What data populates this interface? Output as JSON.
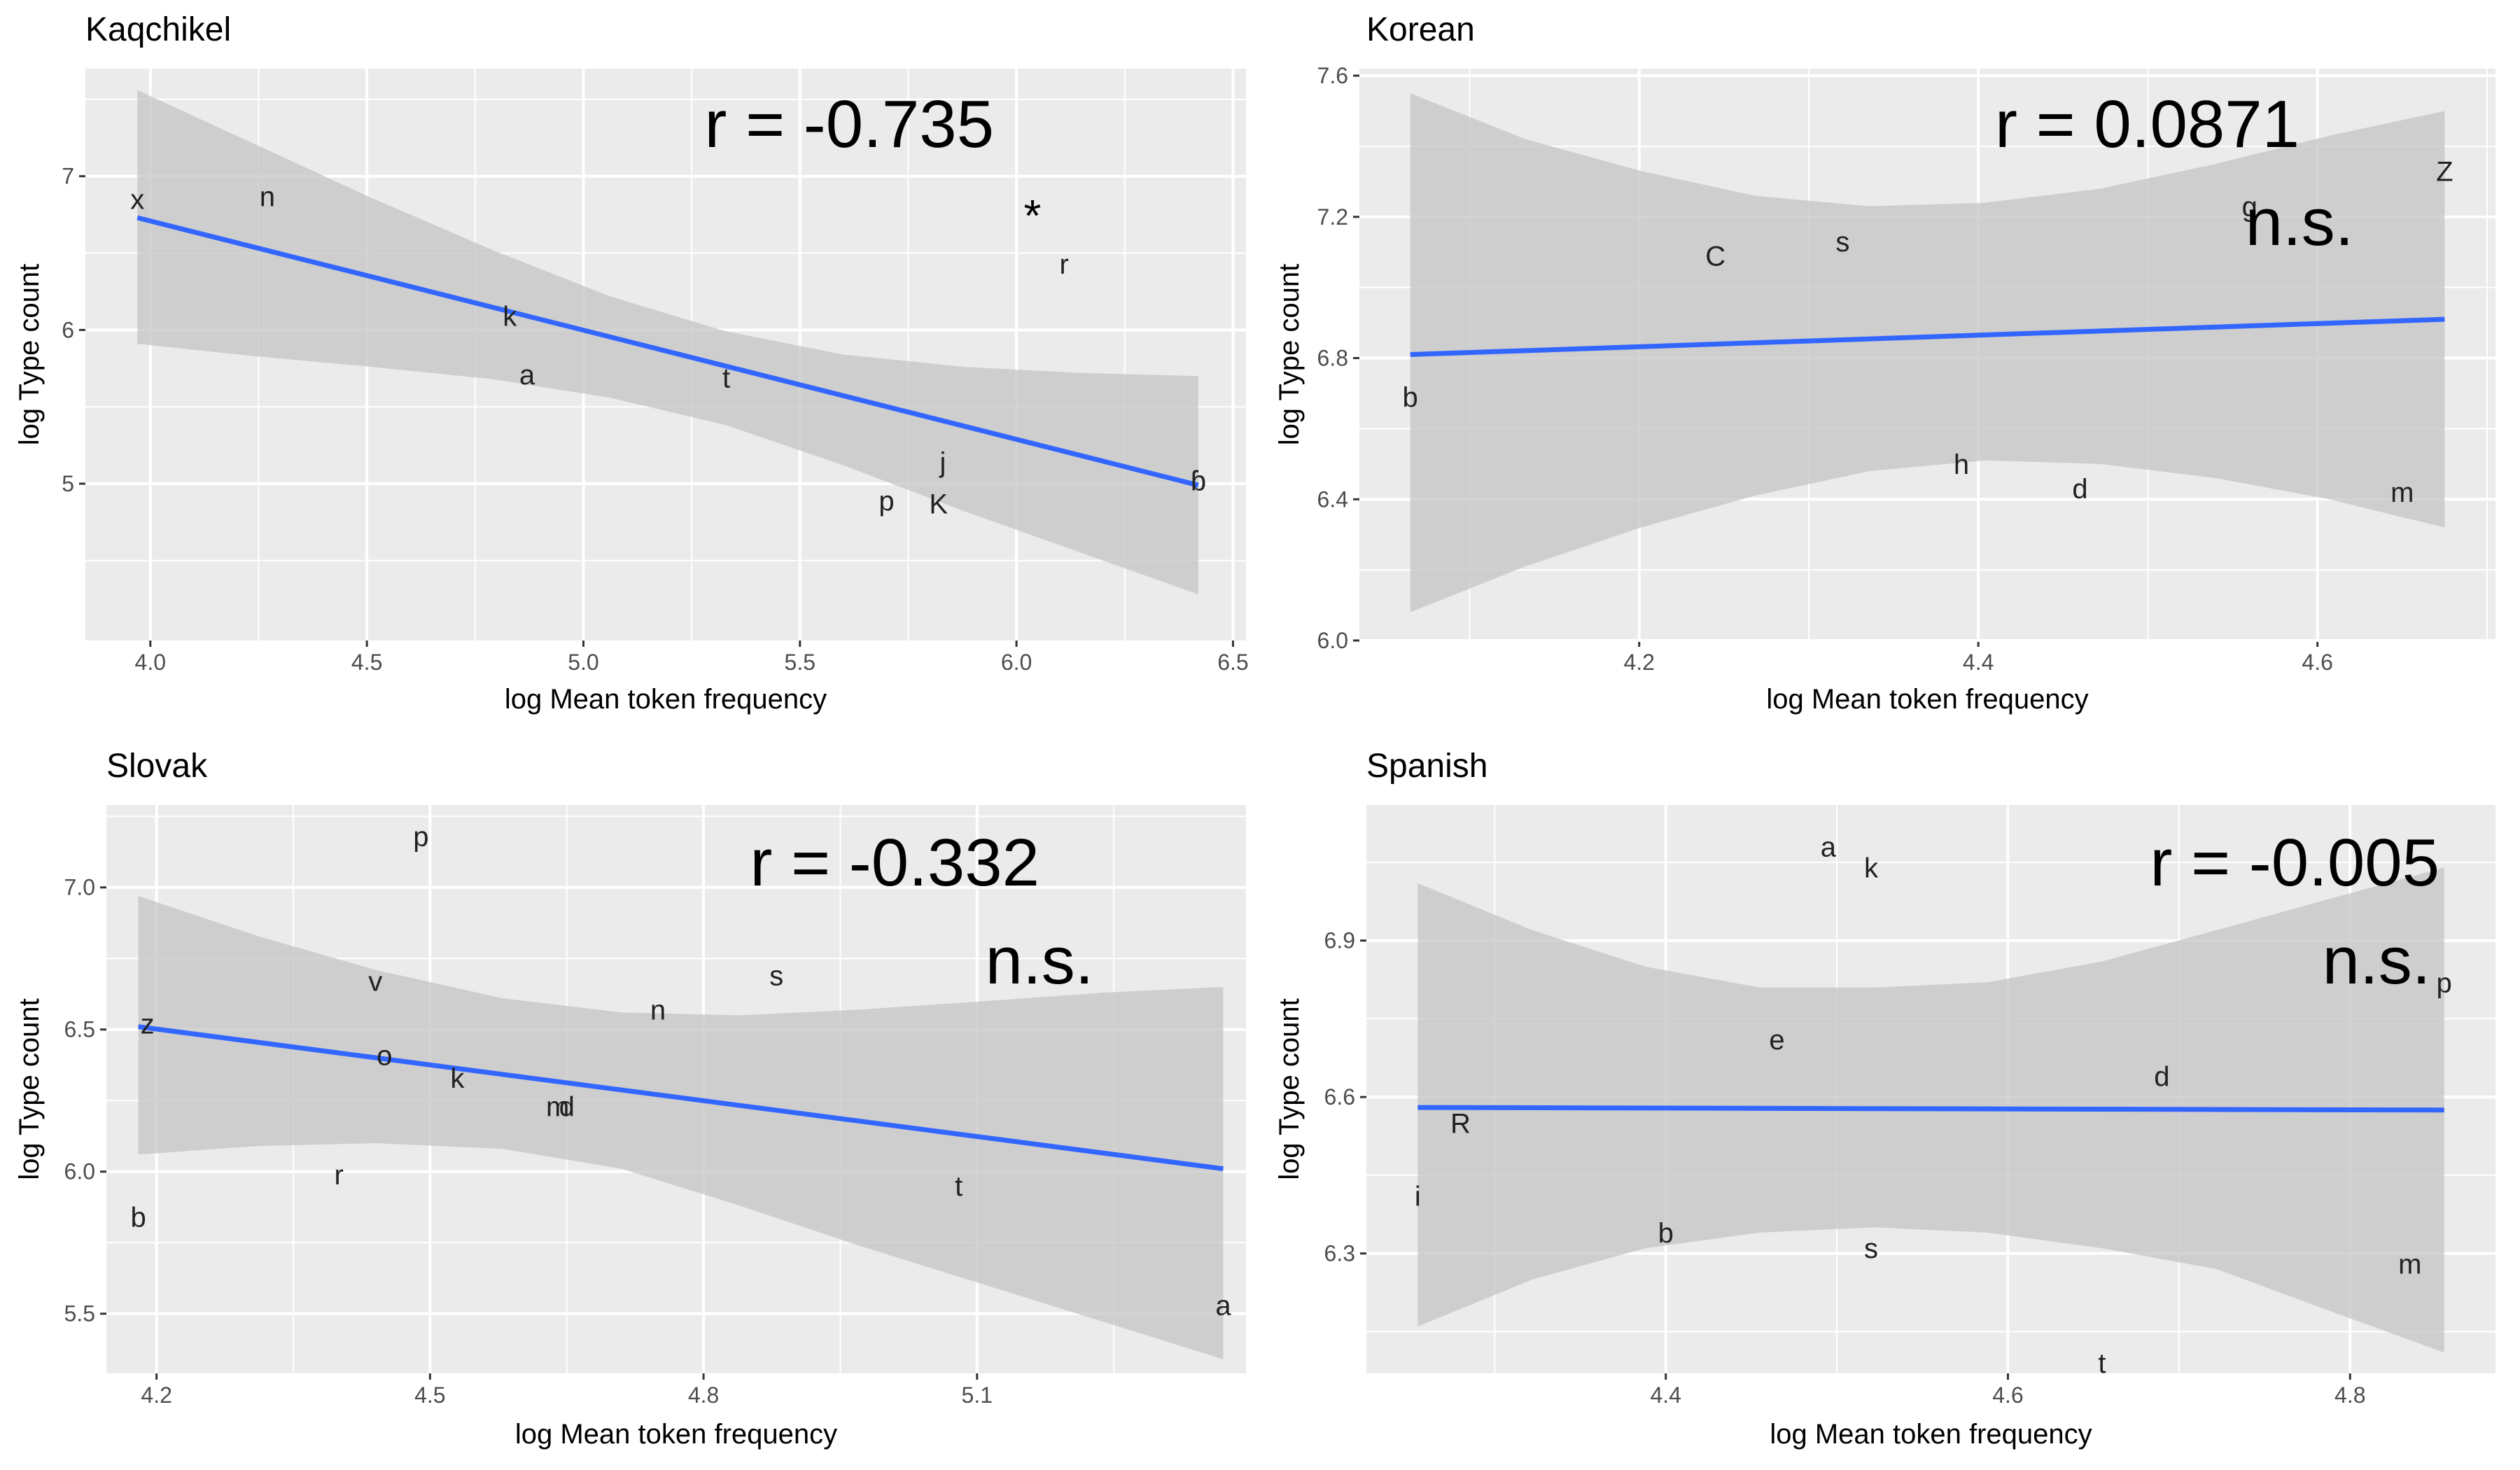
{
  "chart_data": [
    {
      "type": "scatter",
      "title": "Kaqchikel",
      "xlabel": "log Mean token frequency",
      "ylabel": "log Type count",
      "xlim": [
        3.85,
        6.53
      ],
      "ylim": [
        3.98,
        7.7
      ],
      "xticks": [
        4.0,
        4.5,
        5.0,
        5.5,
        6.0,
        6.5
      ],
      "xtick_labels": [
        "4.0",
        "4.5",
        "5.0",
        "5.5",
        "6.0",
        "6.5"
      ],
      "yticks": [
        5,
        6,
        7
      ],
      "ytick_labels": [
        "5",
        "6",
        "7"
      ],
      "grid": true,
      "annotation": "r = -0.735",
      "significance": "*",
      "points": [
        {
          "label": "x",
          "x": 3.97,
          "y": 6.85
        },
        {
          "label": "n",
          "x": 4.27,
          "y": 6.87
        },
        {
          "label": "k",
          "x": 4.83,
          "y": 6.09
        },
        {
          "label": "a",
          "x": 4.87,
          "y": 5.71
        },
        {
          "label": "t",
          "x": 5.33,
          "y": 5.69
        },
        {
          "label": "r",
          "x": 6.11,
          "y": 6.43
        },
        {
          "label": "j",
          "x": 5.83,
          "y": 5.14
        },
        {
          "label": "p",
          "x": 5.7,
          "y": 4.89
        },
        {
          "label": "K",
          "x": 5.82,
          "y": 4.87
        },
        {
          "label": "ɓ",
          "x": 6.42,
          "y": 5.02
        }
      ],
      "fit": {
        "x": [
          3.97,
          6.42
        ],
        "y": [
          6.73,
          4.99
        ]
      },
      "ci_lower": [
        5.91,
        5.83,
        5.76,
        5.68,
        5.56,
        5.38,
        5.12,
        4.82,
        4.55,
        4.28
      ],
      "ci_upper": [
        7.56,
        7.21,
        6.86,
        6.52,
        6.22,
        5.99,
        5.84,
        5.76,
        5.72,
        5.7
      ],
      "ci_x": [
        3.97,
        4.24,
        4.51,
        4.79,
        5.06,
        5.33,
        5.6,
        5.88,
        6.15,
        6.42
      ],
      "colors": {
        "panel": "#ebebeb",
        "grid": "#ffffff",
        "line": "#3366ff",
        "ribbon": "#c4c4c4"
      }
    },
    {
      "type": "scatter",
      "title": "Korean",
      "xlabel": "log Mean token frequency",
      "ylabel": "log Type count",
      "xlim": [
        4.035,
        4.705
      ],
      "ylim": [
        6.0,
        7.62
      ],
      "xticks": [
        4.2,
        4.4,
        4.6
      ],
      "xtick_labels": [
        "4.2",
        "4.4",
        "4.6"
      ],
      "yticks": [
        6.0,
        6.4,
        6.8,
        7.2,
        7.6
      ],
      "ytick_labels": [
        "6.0",
        "6.4",
        "6.8",
        "7.2",
        "7.6"
      ],
      "grid": true,
      "annotation": "r = 0.0871",
      "significance": "n.s.",
      "points": [
        {
          "label": "Z",
          "x": 4.675,
          "y": 7.33
        },
        {
          "label": "g",
          "x": 4.56,
          "y": 7.23
        },
        {
          "label": "C",
          "x": 4.245,
          "y": 7.09
        },
        {
          "label": "s",
          "x": 4.32,
          "y": 7.13
        },
        {
          "label": "b",
          "x": 4.065,
          "y": 6.69
        },
        {
          "label": "h",
          "x": 4.39,
          "y": 6.5
        },
        {
          "label": "d",
          "x": 4.46,
          "y": 6.43
        },
        {
          "label": "m",
          "x": 4.65,
          "y": 6.42
        }
      ],
      "fit": {
        "x": [
          4.065,
          4.675
        ],
        "y": [
          6.81,
          6.91
        ]
      },
      "ci_x": [
        4.065,
        4.133,
        4.201,
        4.268,
        4.336,
        4.404,
        4.472,
        4.54,
        4.607,
        4.675
      ],
      "ci_lower": [
        6.08,
        6.21,
        6.32,
        6.41,
        6.48,
        6.51,
        6.5,
        6.46,
        6.4,
        6.32
      ],
      "ci_upper": [
        7.55,
        7.42,
        7.33,
        7.26,
        7.23,
        7.24,
        7.28,
        7.35,
        7.43,
        7.5
      ],
      "colors": {
        "panel": "#ebebeb",
        "grid": "#ffffff",
        "line": "#3366ff",
        "ribbon": "#c4c4c4"
      }
    },
    {
      "type": "scatter",
      "title": "Slovak",
      "xlabel": "log Mean token frequency",
      "ylabel": "log Type count",
      "xlim": [
        4.145,
        5.395
      ],
      "ylim": [
        5.29,
        7.29
      ],
      "xticks": [
        4.2,
        4.5,
        4.8,
        5.1
      ],
      "xtick_labels": [
        "4.2",
        "4.5",
        "4.8",
        "5.1"
      ],
      "yticks": [
        5.5,
        6.0,
        6.5,
        7.0
      ],
      "ytick_labels": [
        "5.5",
        "6.0",
        "6.5",
        "7.0"
      ],
      "grid": true,
      "annotation": "r = -0.332",
      "significance": "n.s.",
      "points": [
        {
          "label": "p",
          "x": 4.49,
          "y": 7.18
        },
        {
          "label": "v",
          "x": 4.44,
          "y": 6.67
        },
        {
          "label": "s",
          "x": 4.88,
          "y": 6.69
        },
        {
          "label": "n",
          "x": 4.75,
          "y": 6.57
        },
        {
          "label": "z",
          "x": 4.19,
          "y": 6.52
        },
        {
          "label": "o",
          "x": 4.45,
          "y": 6.41
        },
        {
          "label": "k",
          "x": 4.53,
          "y": 6.33
        },
        {
          "label": "m",
          "x": 4.64,
          "y": 6.23
        },
        {
          "label": "d",
          "x": 4.65,
          "y": 6.23
        },
        {
          "label": "r",
          "x": 4.4,
          "y": 5.99
        },
        {
          "label": "t",
          "x": 5.08,
          "y": 5.95
        },
        {
          "label": "b",
          "x": 4.18,
          "y": 5.84
        },
        {
          "label": "a",
          "x": 5.37,
          "y": 5.53
        }
      ],
      "fit": {
        "x": [
          4.18,
          5.37
        ],
        "y": [
          6.51,
          6.01
        ]
      },
      "ci_x": [
        4.18,
        4.31,
        4.44,
        4.58,
        4.71,
        4.84,
        4.97,
        5.11,
        5.24,
        5.37
      ],
      "ci_lower": [
        6.06,
        6.09,
        6.1,
        6.08,
        6.01,
        5.88,
        5.74,
        5.6,
        5.47,
        5.34
      ],
      "ci_upper": [
        6.97,
        6.83,
        6.71,
        6.61,
        6.56,
        6.55,
        6.57,
        6.6,
        6.63,
        6.65
      ],
      "colors": {
        "panel": "#ebebeb",
        "grid": "#ffffff",
        "line": "#3366ff",
        "ribbon": "#c4c4c4"
      }
    },
    {
      "type": "scatter",
      "title": "Spanish",
      "xlabel": "log Mean token frequency",
      "ylabel": "log Type count",
      "xlim": [
        4.225,
        4.885
      ],
      "ylim": [
        6.07,
        7.16
      ],
      "xticks": [
        4.4,
        4.6,
        4.8
      ],
      "xtick_labels": [
        "4.4",
        "4.6",
        "4.8"
      ],
      "yticks": [
        6.3,
        6.6,
        6.9
      ],
      "ytick_labels": [
        "6.3",
        "6.6",
        "6.9"
      ],
      "grid": true,
      "annotation": "r = -0.005",
      "significance": "n.s.",
      "points": [
        {
          "label": "a",
          "x": 4.495,
          "y": 7.08
        },
        {
          "label": "k",
          "x": 4.52,
          "y": 7.04
        },
        {
          "label": "p",
          "x": 4.855,
          "y": 6.82
        },
        {
          "label": "e",
          "x": 4.465,
          "y": 6.71
        },
        {
          "label": "d",
          "x": 4.69,
          "y": 6.64
        },
        {
          "label": "R",
          "x": 4.28,
          "y": 6.55
        },
        {
          "label": "i",
          "x": 4.255,
          "y": 6.41
        },
        {
          "label": "b",
          "x": 4.4,
          "y": 6.34
        },
        {
          "label": "s",
          "x": 4.52,
          "y": 6.31
        },
        {
          "label": "m",
          "x": 4.835,
          "y": 6.28
        },
        {
          "label": "t",
          "x": 4.655,
          "y": 6.09
        }
      ],
      "fit": {
        "x": [
          4.255,
          4.855
        ],
        "y": [
          6.58,
          6.575
        ]
      },
      "ci_x": [
        4.255,
        4.322,
        4.388,
        4.455,
        4.522,
        4.588,
        4.655,
        4.722,
        4.788,
        4.855
      ],
      "ci_lower": [
        6.16,
        6.25,
        6.31,
        6.34,
        6.35,
        6.34,
        6.31,
        6.27,
        6.19,
        6.11
      ],
      "ci_upper": [
        7.01,
        6.92,
        6.85,
        6.81,
        6.81,
        6.82,
        6.86,
        6.92,
        6.98,
        7.04
      ],
      "colors": {
        "panel": "#ebebeb",
        "grid": "#ffffff",
        "line": "#3366ff",
        "ribbon": "#c4c4c4"
      }
    }
  ]
}
